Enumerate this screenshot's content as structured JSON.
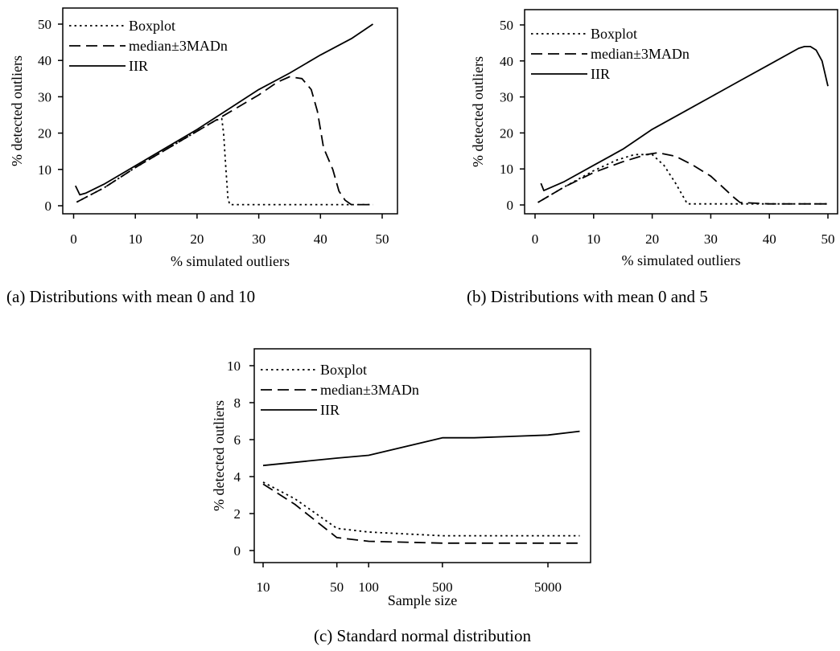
{
  "chart_data": [
    {
      "type": "line",
      "caption": "(a) Distributions with mean 0 and 10",
      "xlabel": "% simulated outliers",
      "ylabel": "% detected outliers",
      "xlim": [
        0,
        50
      ],
      "ylim": [
        0,
        50
      ],
      "xticks": [
        "0",
        "10",
        "20",
        "30",
        "40",
        "50"
      ],
      "yticks": [
        "0",
        "10",
        "20",
        "30",
        "40",
        "50"
      ],
      "legend_position": "top-left",
      "series": [
        {
          "name": "Boxplot",
          "style": "dotted",
          "points": [
            [
              0.5,
              1
            ],
            [
              5,
              5
            ],
            [
              10,
              10.5
            ],
            [
              15,
              15.5
            ],
            [
              20,
              20.5
            ],
            [
              23,
              23.5
            ],
            [
              24,
              24
            ],
            [
              24.3,
              20
            ],
            [
              24.6,
              12
            ],
            [
              25,
              2
            ],
            [
              25.3,
              0.3
            ],
            [
              30,
              0.3
            ],
            [
              40,
              0.3
            ],
            [
              48.5,
              0.3
            ]
          ]
        },
        {
          "name": "median±3MADn",
          "style": "dashed",
          "points": [
            [
              0.5,
              1
            ],
            [
              5,
              5
            ],
            [
              10,
              10.5
            ],
            [
              15,
              15.5
            ],
            [
              20,
              20.5
            ],
            [
              25,
              25.5
            ],
            [
              30,
              30.5
            ],
            [
              33,
              34
            ],
            [
              35,
              35.5
            ],
            [
              37,
              35
            ],
            [
              38.5,
              32
            ],
            [
              39.5,
              26
            ],
            [
              40.5,
              16
            ],
            [
              42,
              10
            ],
            [
              43,
              4
            ],
            [
              44,
              1.5
            ],
            [
              45,
              0.3
            ],
            [
              48.5,
              0.3
            ]
          ]
        },
        {
          "name": "IIR",
          "style": "solid",
          "points": [
            [
              0.3,
              5.5
            ],
            [
              1,
              3
            ],
            [
              2,
              3.5
            ],
            [
              5,
              6
            ],
            [
              10,
              11
            ],
            [
              15,
              16
            ],
            [
              20,
              21
            ],
            [
              25,
              26.5
            ],
            [
              30,
              32
            ],
            [
              35,
              36.5
            ],
            [
              40,
              41.5
            ],
            [
              45,
              46
            ],
            [
              48.5,
              50
            ]
          ]
        }
      ]
    },
    {
      "type": "line",
      "caption": "(b) Distributions with mean 0 and 5",
      "xlabel": "% simulated outliers",
      "ylabel": "% detected outliers",
      "xlim": [
        0,
        50
      ],
      "ylim": [
        0,
        50
      ],
      "xticks": [
        "0",
        "10",
        "20",
        "30",
        "40",
        "50"
      ],
      "yticks": [
        "0",
        "10",
        "20",
        "30",
        "40",
        "50"
      ],
      "legend_position": "top-left",
      "series": [
        {
          "name": "Boxplot",
          "style": "dotted",
          "points": [
            [
              0.5,
              0.7
            ],
            [
              5,
              5
            ],
            [
              10,
              9.5
            ],
            [
              14,
              12.5
            ],
            [
              17,
              14
            ],
            [
              20,
              14
            ],
            [
              22,
              11
            ],
            [
              24,
              6
            ],
            [
              26,
              0.3
            ],
            [
              30,
              0.3
            ],
            [
              35,
              0.3
            ],
            [
              50,
              0.3
            ]
          ]
        },
        {
          "name": "median±3MADn",
          "style": "dashed",
          "points": [
            [
              0.5,
              0.7
            ],
            [
              5,
              5
            ],
            [
              10,
              9
            ],
            [
              15,
              12
            ],
            [
              19,
              14
            ],
            [
              21,
              14.5
            ],
            [
              24,
              13.5
            ],
            [
              27,
              11
            ],
            [
              30,
              8
            ],
            [
              32,
              5
            ],
            [
              34,
              2
            ],
            [
              35,
              0.7
            ],
            [
              40,
              0.3
            ],
            [
              50,
              0.3
            ]
          ]
        },
        {
          "name": "IIR",
          "style": "solid",
          "points": [
            [
              1,
              6
            ],
            [
              1.5,
              4
            ],
            [
              5,
              6.5
            ],
            [
              10,
              11
            ],
            [
              15,
              15.5
            ],
            [
              20,
              21
            ],
            [
              25,
              25.5
            ],
            [
              30,
              30
            ],
            [
              35,
              34.5
            ],
            [
              40,
              39
            ],
            [
              45,
              43.5
            ],
            [
              46,
              44
            ],
            [
              47,
              44
            ],
            [
              48,
              43
            ],
            [
              49,
              40
            ],
            [
              50,
              33
            ]
          ]
        }
      ]
    },
    {
      "type": "line",
      "caption": "(c) Standard normal distribution",
      "xlabel": "Sample size",
      "ylabel": "% detected outliers",
      "xscale": "log",
      "xlim": [
        8,
        12000
      ],
      "ylim": [
        0,
        10
      ],
      "xticks": [
        "10",
        "50",
        "100",
        "500",
        "5000"
      ],
      "yticks": [
        "0",
        "2",
        "4",
        "6",
        "8",
        "10"
      ],
      "legend_position": "top-left",
      "series": [
        {
          "name": "Boxplot",
          "style": "dotted",
          "points": [
            [
              10,
              3.7
            ],
            [
              20,
              2.8
            ],
            [
              50,
              1.2
            ],
            [
              100,
              1.0
            ],
            [
              500,
              0.8
            ],
            [
              1000,
              0.8
            ],
            [
              10000,
              0.8
            ]
          ]
        },
        {
          "name": "median±3MADn",
          "style": "dashed",
          "points": [
            [
              10,
              3.6
            ],
            [
              20,
              2.5
            ],
            [
              50,
              0.7
            ],
            [
              100,
              0.5
            ],
            [
              500,
              0.4
            ],
            [
              1000,
              0.4
            ],
            [
              10000,
              0.4
            ]
          ]
        },
        {
          "name": "IIR",
          "style": "solid",
          "points": [
            [
              10,
              4.6
            ],
            [
              50,
              5.0
            ],
            [
              100,
              5.15
            ],
            [
              500,
              6.1
            ],
            [
              1000,
              6.1
            ],
            [
              5000,
              6.25
            ],
            [
              10000,
              6.45
            ]
          ]
        }
      ]
    }
  ]
}
